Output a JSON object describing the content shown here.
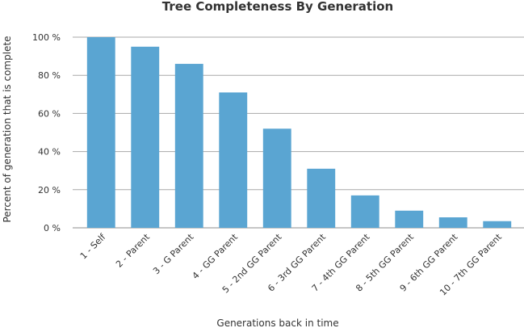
{
  "chart_data": {
    "type": "bar",
    "title": "Tree Completeness By Generation",
    "xlabel": "Generations back in time",
    "ylabel": "Percent of generation that is complete",
    "categories": [
      "1 - Self",
      "2 - Parent",
      "3 - G Parent",
      "4 - GG Parent",
      "5 - 2nd GG Parent",
      "6 - 3rd GG Parent",
      "7 - 4th GG Parent",
      "8 - 5th GG Parent",
      "9 - 6th GG Parent",
      "10 - 7th GG Parent"
    ],
    "values": [
      100,
      95,
      86,
      71,
      52,
      31,
      17,
      9,
      5.5,
      3.5
    ],
    "ylim": [
      0,
      100
    ],
    "yticks": [
      0,
      20,
      40,
      60,
      80,
      100
    ],
    "ytick_labels": [
      "0 %",
      "20 %",
      "40 %",
      "60 %",
      "80 %",
      "100 %"
    ],
    "grid": true,
    "legend": "none",
    "colors": {
      "bar": "#5aa5d2",
      "grid": "#a8a8a8",
      "text": "#333333"
    }
  }
}
